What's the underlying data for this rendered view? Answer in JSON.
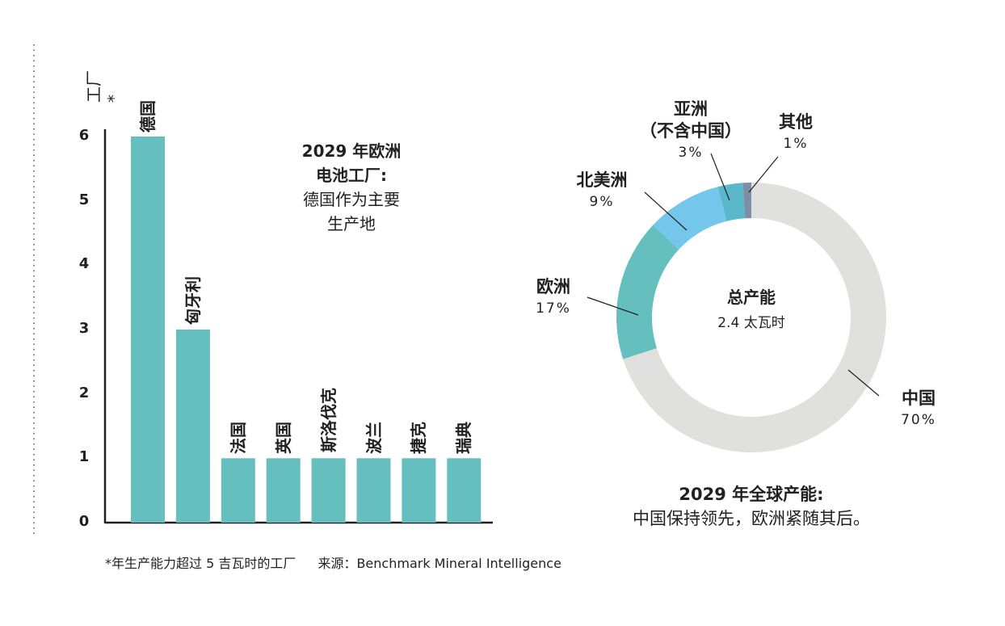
{
  "chart_data": [
    {
      "type": "bar",
      "title": "2029 年欧洲电池工厂:",
      "subtitle": "德国作为主要生产地",
      "ylabel": "工厂*",
      "xlabel": "",
      "ylim": [
        0,
        6
      ],
      "yticks": [
        0,
        1,
        2,
        3,
        4,
        5,
        6
      ],
      "categories": [
        "德国",
        "匈牙利",
        "法国",
        "英国",
        "斯洛伐克",
        "波兰",
        "捷克",
        "瑞典"
      ],
      "values": [
        6,
        3,
        1,
        1,
        1,
        1,
        1,
        1
      ],
      "color": "#66bfbf"
    },
    {
      "type": "pie",
      "donut": true,
      "title": "2029 年全球产能:",
      "subtitle": "中国保持领先，欧洲紧随其后。",
      "center_title": "总产能",
      "center_value": "2.4 太瓦时",
      "slices": [
        {
          "label": "中国",
          "value": 70,
          "pct": "70%",
          "color": "#e0e0de"
        },
        {
          "label": "欧洲",
          "value": 17,
          "pct": "17%",
          "color": "#66bfbf"
        },
        {
          "label": "北美洲",
          "value": 9,
          "pct": "9%",
          "color": "#74c6ea"
        },
        {
          "label": "亚洲",
          "label2": "（不含中国）",
          "value": 3,
          "pct": "3%",
          "color": "#5bb8cb"
        },
        {
          "label": "其他",
          "value": 1,
          "pct": "1%",
          "color": "#7f8ea6"
        }
      ]
    }
  ],
  "footnote": "*年生产能力超过 5 吉瓦时的工厂",
  "source": "来源：Benchmark Mineral Intelligence"
}
